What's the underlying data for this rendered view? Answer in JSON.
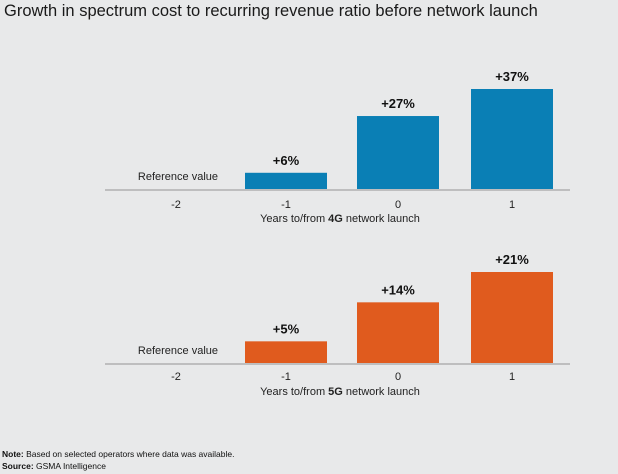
{
  "title": "Growth in spectrum cost to recurring revenue ratio before network launch",
  "chart_data": [
    {
      "type": "bar",
      "color": "#0a7fb5",
      "categories": [
        "-2",
        "-1",
        "0",
        "1"
      ],
      "values": [
        0,
        6,
        27,
        37
      ],
      "labels": [
        "",
        "+6%",
        "+27%",
        "+37%"
      ],
      "reference_label": "Reference value",
      "xlabel_pre": "Years to/from ",
      "xlabel_bold": "4G",
      "xlabel_post": " network launch",
      "ylim": [
        0,
        37
      ]
    },
    {
      "type": "bar",
      "color": "#e05b1e",
      "categories": [
        "-2",
        "-1",
        "0",
        "1"
      ],
      "values": [
        0,
        5,
        14,
        21
      ],
      "labels": [
        "",
        "+5%",
        "+14%",
        "+21%"
      ],
      "reference_label": "Reference value",
      "xlabel_pre": "Years to/from ",
      "xlabel_bold": "5G",
      "xlabel_post": " network launch",
      "ylim": [
        0,
        21
      ]
    }
  ],
  "notes": {
    "note_label": "Note:",
    "note_text": " Based on selected operators where data was available.",
    "source_label": "Source:",
    "source_text": " GSMA Intelligence"
  }
}
